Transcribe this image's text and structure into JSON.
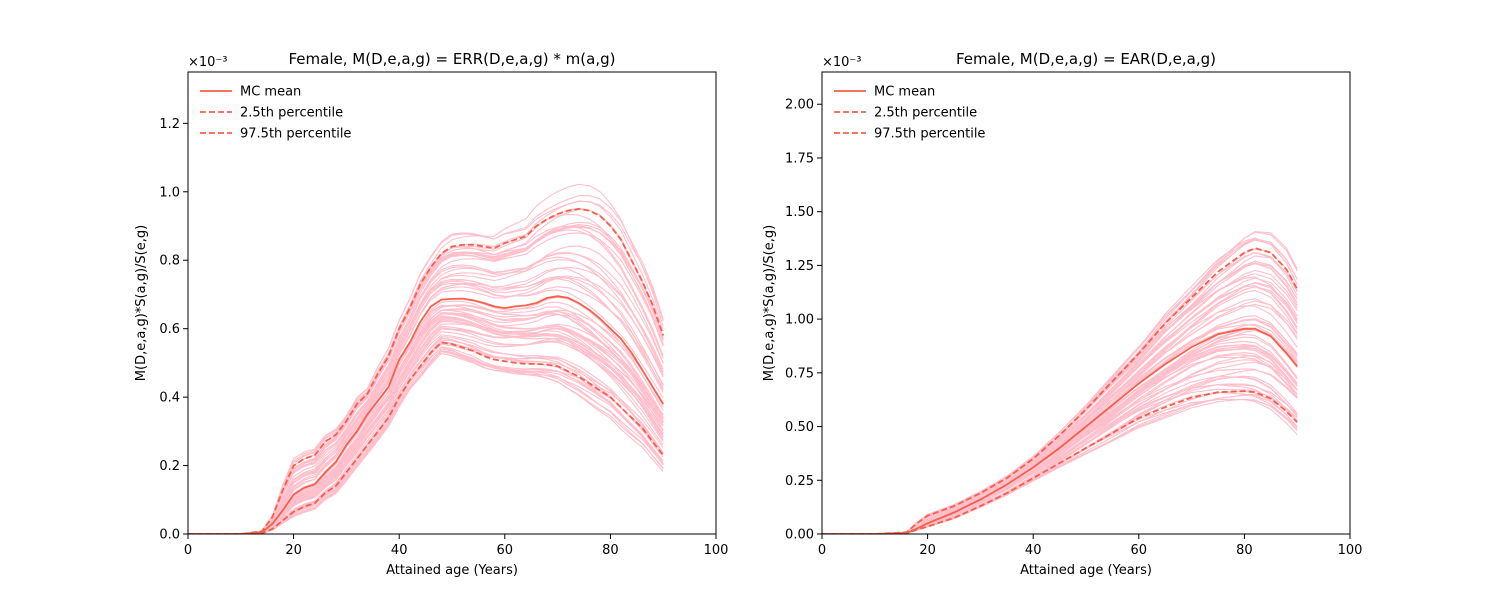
{
  "chart_data": [
    {
      "type": "line",
      "title": "Female, M(D,e,a,g) = ERR(D,e,a,g) * m(a,g)",
      "xlabel": "Attained age (Years)",
      "ylabel": "M(D,e,a,g)*S(a,g)/S(e,g)",
      "y_multiplier": "×10⁻³",
      "xlim": [
        0,
        100
      ],
      "ylim": [
        0,
        1.35
      ],
      "xticks": [
        "0",
        "20",
        "40",
        "60",
        "80",
        "100"
      ],
      "yticks": [
        "0.0",
        "0.2",
        "0.4",
        "0.6",
        "0.8",
        "1.0",
        "1.2"
      ],
      "grid": false,
      "legend_position": "top-left",
      "colors": {
        "mean": "#f4604a",
        "samples": "#ffbfcb"
      },
      "series": [
        {
          "name": "MC mean",
          "style": "solid",
          "x": [
            0,
            10,
            14,
            16,
            18,
            20,
            22,
            24,
            26,
            28,
            30,
            32,
            34,
            36,
            38,
            40,
            42,
            44,
            46,
            48,
            50,
            52,
            54,
            56,
            58,
            60,
            62,
            64,
            66,
            68,
            70,
            72,
            74,
            76,
            78,
            80,
            82,
            84,
            86,
            88,
            90
          ],
          "y": [
            0,
            0,
            0.005,
            0.03,
            0.07,
            0.115,
            0.135,
            0.145,
            0.18,
            0.21,
            0.26,
            0.3,
            0.35,
            0.39,
            0.43,
            0.51,
            0.56,
            0.62,
            0.665,
            0.685,
            0.687,
            0.688,
            0.683,
            0.675,
            0.665,
            0.66,
            0.665,
            0.668,
            0.675,
            0.69,
            0.695,
            0.69,
            0.675,
            0.655,
            0.63,
            0.6,
            0.57,
            0.53,
            0.48,
            0.43,
            0.38
          ]
        },
        {
          "name": "2.5th percentile",
          "style": "dashed",
          "x": [
            0,
            10,
            14,
            16,
            18,
            20,
            22,
            24,
            26,
            28,
            30,
            32,
            34,
            36,
            38,
            40,
            42,
            44,
            46,
            48,
            50,
            52,
            54,
            56,
            58,
            60,
            62,
            64,
            66,
            68,
            70,
            72,
            74,
            76,
            78,
            80,
            82,
            84,
            86,
            88,
            90
          ],
          "y": [
            0,
            0,
            0.002,
            0.015,
            0.04,
            0.065,
            0.08,
            0.09,
            0.12,
            0.14,
            0.18,
            0.22,
            0.26,
            0.3,
            0.34,
            0.4,
            0.45,
            0.49,
            0.53,
            0.56,
            0.555,
            0.545,
            0.535,
            0.52,
            0.51,
            0.505,
            0.5,
            0.497,
            0.497,
            0.495,
            0.49,
            0.475,
            0.46,
            0.44,
            0.42,
            0.4,
            0.37,
            0.34,
            0.31,
            0.27,
            0.23
          ]
        },
        {
          "name": "97.5th percentile",
          "style": "dashed",
          "x": [
            0,
            10,
            14,
            16,
            18,
            20,
            22,
            24,
            26,
            28,
            30,
            32,
            34,
            36,
            38,
            40,
            42,
            44,
            46,
            48,
            50,
            52,
            54,
            56,
            58,
            60,
            62,
            64,
            66,
            68,
            70,
            72,
            74,
            76,
            78,
            80,
            82,
            84,
            86,
            88,
            90
          ],
          "y": [
            0,
            0,
            0.008,
            0.05,
            0.13,
            0.2,
            0.22,
            0.23,
            0.27,
            0.29,
            0.33,
            0.38,
            0.41,
            0.47,
            0.52,
            0.6,
            0.66,
            0.73,
            0.78,
            0.82,
            0.84,
            0.845,
            0.845,
            0.84,
            0.835,
            0.85,
            0.86,
            0.87,
            0.9,
            0.92,
            0.935,
            0.945,
            0.95,
            0.945,
            0.93,
            0.9,
            0.86,
            0.8,
            0.74,
            0.67,
            0.58
          ]
        }
      ]
    },
    {
      "type": "line",
      "title": "Female, M(D,e,a,g) = EAR(D,e,a,g)",
      "xlabel": "Attained age (Years)",
      "ylabel": "M(D,e,a,g)*S(a,g)/S(e,g)",
      "y_multiplier": "×10⁻³",
      "xlim": [
        0,
        100
      ],
      "ylim": [
        0,
        2.15
      ],
      "xticks": [
        "0",
        "20",
        "40",
        "60",
        "80",
        "100"
      ],
      "yticks": [
        "0.00",
        "0.25",
        "0.50",
        "0.75",
        "1.00",
        "1.25",
        "1.50",
        "1.75",
        "2.00"
      ],
      "grid": false,
      "legend_position": "top-left",
      "colors": {
        "mean": "#f4604a",
        "samples": "#ffbfcb"
      },
      "series": [
        {
          "name": "MC mean",
          "style": "solid",
          "x": [
            0,
            10,
            16,
            18,
            20,
            25,
            30,
            35,
            40,
            45,
            50,
            55,
            60,
            65,
            70,
            75,
            80,
            82,
            85,
            88,
            90
          ],
          "y": [
            0,
            0,
            0.005,
            0.025,
            0.05,
            0.1,
            0.16,
            0.23,
            0.31,
            0.4,
            0.5,
            0.6,
            0.7,
            0.79,
            0.87,
            0.93,
            0.955,
            0.955,
            0.92,
            0.84,
            0.78
          ]
        },
        {
          "name": "2.5th percentile",
          "style": "dashed",
          "x": [
            0,
            10,
            16,
            18,
            20,
            25,
            30,
            35,
            40,
            45,
            50,
            55,
            60,
            65,
            70,
            75,
            80,
            82,
            85,
            88,
            90
          ],
          "y": [
            0,
            0,
            0.003,
            0.02,
            0.035,
            0.075,
            0.13,
            0.19,
            0.26,
            0.33,
            0.4,
            0.47,
            0.54,
            0.59,
            0.635,
            0.66,
            0.665,
            0.66,
            0.63,
            0.57,
            0.52
          ]
        },
        {
          "name": "97.5th percentile",
          "style": "dashed",
          "x": [
            0,
            10,
            16,
            18,
            20,
            25,
            30,
            35,
            40,
            45,
            50,
            55,
            60,
            65,
            70,
            75,
            80,
            82,
            85,
            88,
            90
          ],
          "y": [
            0,
            0,
            0.008,
            0.05,
            0.085,
            0.13,
            0.19,
            0.26,
            0.35,
            0.46,
            0.58,
            0.71,
            0.84,
            0.98,
            1.1,
            1.22,
            1.31,
            1.33,
            1.31,
            1.23,
            1.14
          ]
        }
      ]
    }
  ]
}
